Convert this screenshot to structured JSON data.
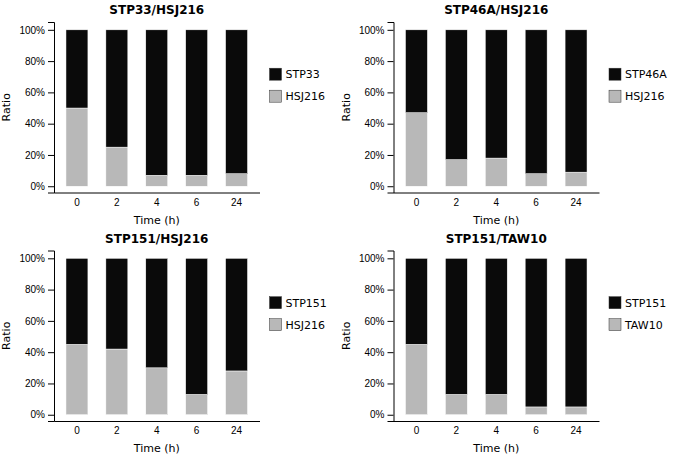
{
  "chart_data": [
    {
      "type": "bar",
      "title": "STP33/HSJ216",
      "x_label": "Time (h)",
      "y_label": "Ratio",
      "categories": [
        "0",
        "2",
        "4",
        "6",
        "24"
      ],
      "series": [
        {
          "name": "HSJ216",
          "color": "#b8b8b8",
          "values": [
            50,
            25,
            7,
            7,
            8
          ]
        },
        {
          "name": "STP33",
          "color": "#0a0a0a",
          "values": [
            50,
            75,
            93,
            93,
            92
          ]
        }
      ],
      "stacked": true,
      "ylim": [
        -4,
        105
      ],
      "yticks": [
        {
          "value": 0,
          "label": "0%"
        },
        {
          "value": 20,
          "label": "20%"
        },
        {
          "value": 40,
          "label": "40%"
        },
        {
          "value": 60,
          "label": "60%"
        },
        {
          "value": 80,
          "label": "80%"
        },
        {
          "value": 100,
          "label": "100%"
        }
      ],
      "grid": false,
      "legend": "right"
    },
    {
      "type": "bar",
      "title": "STP46A/HSJ216",
      "x_label": "Time (h)",
      "y_label": "Ratio",
      "categories": [
        "0",
        "2",
        "4",
        "6",
        "24"
      ],
      "series": [
        {
          "name": "HSJ216",
          "color": "#b8b8b8",
          "values": [
            47,
            17,
            18,
            8,
            9
          ]
        },
        {
          "name": "STP46A",
          "color": "#0a0a0a",
          "values": [
            53,
            83,
            82,
            92,
            91
          ]
        }
      ],
      "stacked": true,
      "ylim": [
        -4,
        105
      ],
      "yticks": [
        {
          "value": 0,
          "label": "0%"
        },
        {
          "value": 20,
          "label": "20%"
        },
        {
          "value": 40,
          "label": "40%"
        },
        {
          "value": 60,
          "label": "60%"
        },
        {
          "value": 80,
          "label": "80%"
        },
        {
          "value": 100,
          "label": "100%"
        }
      ],
      "grid": false,
      "legend": "right"
    },
    {
      "type": "bar",
      "title": "STP151/HSJ216",
      "x_label": "Time (h)",
      "y_label": "Ratio",
      "categories": [
        "0",
        "2",
        "4",
        "6",
        "24"
      ],
      "series": [
        {
          "name": "HSJ216",
          "color": "#b8b8b8",
          "values": [
            45,
            42,
            30,
            13,
            28
          ]
        },
        {
          "name": "STP151",
          "color": "#0a0a0a",
          "values": [
            55,
            58,
            70,
            87,
            72
          ]
        }
      ],
      "stacked": true,
      "ylim": [
        -4,
        105
      ],
      "yticks": [
        {
          "value": 0,
          "label": "0%"
        },
        {
          "value": 20,
          "label": "20%"
        },
        {
          "value": 40,
          "label": "40%"
        },
        {
          "value": 60,
          "label": "60%"
        },
        {
          "value": 80,
          "label": "80%"
        },
        {
          "value": 100,
          "label": "100%"
        }
      ],
      "grid": false,
      "legend": "right"
    },
    {
      "type": "bar",
      "title": "STP151/TAW10",
      "x_label": "Time (h)",
      "y_label": "Ratio",
      "categories": [
        "0",
        "2",
        "4",
        "6",
        "24"
      ],
      "series": [
        {
          "name": "TAW10",
          "color": "#b8b8b8",
          "values": [
            45,
            13,
            13,
            5,
            5
          ]
        },
        {
          "name": "STP151",
          "color": "#0a0a0a",
          "values": [
            55,
            87,
            87,
            95,
            95
          ]
        }
      ],
      "stacked": true,
      "ylim": [
        -4,
        105
      ],
      "yticks": [
        {
          "value": 0,
          "label": "0%"
        },
        {
          "value": 20,
          "label": "20%"
        },
        {
          "value": 40,
          "label": "40%"
        },
        {
          "value": 60,
          "label": "60%"
        },
        {
          "value": 80,
          "label": "80%"
        },
        {
          "value": 100,
          "label": "100%"
        }
      ],
      "grid": false,
      "legend": "right"
    }
  ]
}
